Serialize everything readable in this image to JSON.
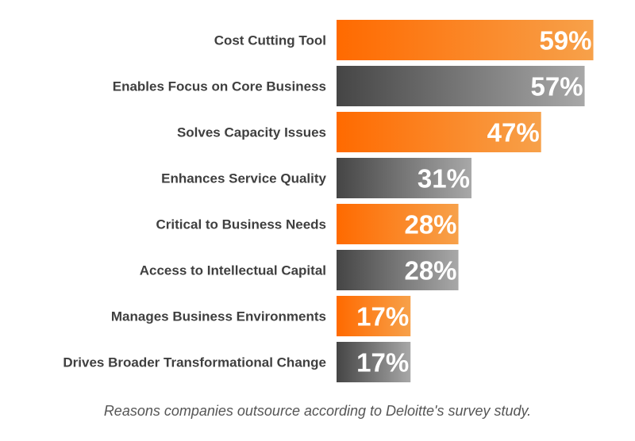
{
  "chart_data": {
    "type": "bar",
    "orientation": "horizontal",
    "categories": [
      "Cost Cutting Tool",
      "Enables Focus on Core Business",
      "Solves Capacity Issues",
      "Enhances Service Quality",
      "Critical to Business Needs",
      "Access to Intellectual Capital",
      "Manages Business Environments",
      "Drives Broader Transformational Change"
    ],
    "values": [
      59,
      57,
      47,
      31,
      28,
      28,
      17,
      17
    ],
    "value_labels": [
      "59%",
      "57%",
      "47%",
      "31%",
      "28%",
      "28%",
      "17%",
      "17%"
    ],
    "unit": "%",
    "xlim": [
      0,
      60
    ],
    "title": "",
    "xlabel": "",
    "ylabel": "",
    "grid": false,
    "legend": "none",
    "bar_styles": [
      "orange",
      "gray",
      "orange",
      "gray",
      "orange",
      "gray",
      "orange",
      "gray"
    ]
  },
  "caption": "Reasons companies outsource according to Deloitte's survey study.",
  "colors": {
    "orange_start": "#ff6a00",
    "orange_end": "#f7a14a",
    "gray_start": "#454545",
    "gray_end": "#a8a8a8",
    "label_text": "#3f3f3f",
    "value_text": "#ffffff"
  }
}
